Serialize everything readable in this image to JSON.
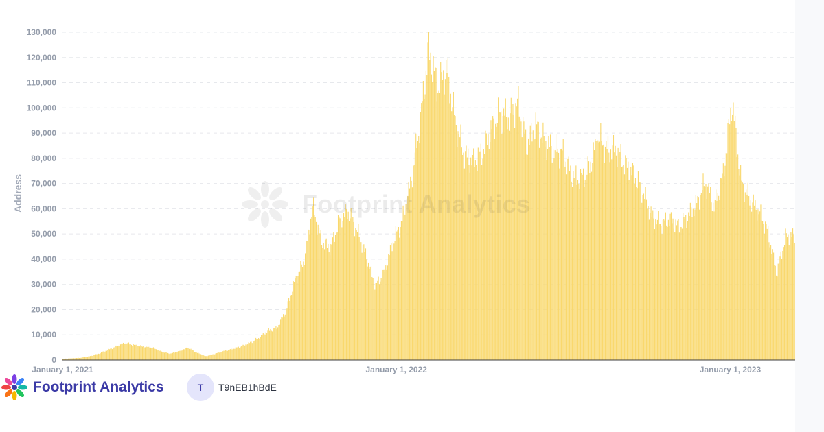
{
  "chart_data": {
    "type": "bar",
    "title": "",
    "xlabel": "",
    "ylabel": "Address",
    "ylim": [
      0,
      130000
    ],
    "y_ticks": [
      "0",
      "10,000",
      "20,000",
      "30,000",
      "40,000",
      "50,000",
      "60,000",
      "70,000",
      "80,000",
      "90,000",
      "100,000",
      "110,000",
      "120,000",
      "130,000"
    ],
    "x_ticks": [
      "January 1, 2021",
      "January 1, 2022",
      "January 1, 2023"
    ],
    "x_range": [
      "2021-01-01",
      "2023-03-12"
    ],
    "grid": "horizontal dashed",
    "legend": "none",
    "bar_color": "#f9d86d",
    "series": [
      {
        "x_start": "2021-01-01",
        "interval": "daily",
        "values": [
          [
            500,
            700,
            900,
            1500,
            2500,
            4000,
            5500,
            7000,
            6000,
            5500,
            5000,
            3500,
            2500,
            3500,
            5000,
            3000,
            1500,
            2500,
            3500,
            4500,
            5500,
            7000,
            9000,
            12000,
            13000,
            20000,
            32000,
            40000,
            62000,
            48000,
            45000,
            57000,
            60000,
            52000,
            42000,
            30000,
            35000,
            48000,
            56000,
            72000,
            95000,
            126000,
            110000,
            118000,
            96000,
            83000,
            80000,
            84000,
            93000,
            100000,
            98000,
            104000,
            87000,
            95000,
            88000,
            85000,
            84000,
            75000,
            73000,
            78000,
            90000,
            85000,
            85000,
            79000,
            75000,
            68000,
            58000,
            55000,
            57000,
            54000,
            58000,
            63000,
            72000,
            62000,
            75000,
            105000,
            72000,
            65000,
            60000,
            52000,
            35000,
            50000,
            50000
          ]
        ]
      }
    ]
  },
  "watermark": {
    "text": "Footprint Analytics"
  },
  "footer": {
    "brand": "Footprint Analytics",
    "avatar_initial": "T",
    "username": "T9nEB1hBdE"
  },
  "colors": {
    "bar": "#f9d86d",
    "grid": "#e6e8ec",
    "tick": "#959dab",
    "brand": "#3b3aa6",
    "avatar_bg": "#e4e5fb"
  }
}
